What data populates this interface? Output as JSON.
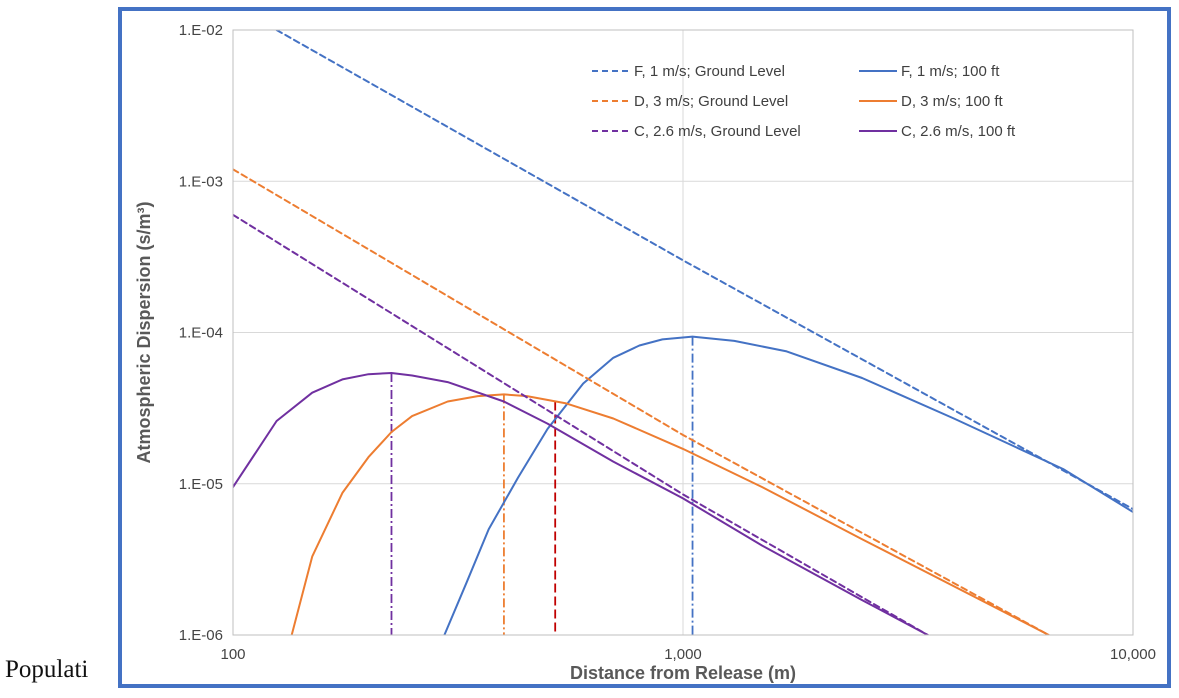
{
  "caption": "Populati",
  "chart_data": {
    "type": "line",
    "xlabel": "Distance from Release (m)",
    "ylabel": "Atmospheric Dispersion (s/m³)",
    "x_scale": "log",
    "y_scale": "log",
    "xlim": [
      100,
      10000
    ],
    "ylim": [
      1e-06,
      0.01
    ],
    "x_ticks": [
      {
        "value": 100,
        "label": "100"
      },
      {
        "value": 1000,
        "label": "1,000"
      },
      {
        "value": 10000,
        "label": "10,000"
      }
    ],
    "y_ticks": [
      {
        "value": 0.01,
        "label": "1.E-02"
      },
      {
        "value": 0.001,
        "label": "1.E-03"
      },
      {
        "value": 0.0001,
        "label": "1.E-04"
      },
      {
        "value": 1e-05,
        "label": "1.E-05"
      },
      {
        "value": 1e-06,
        "label": "1.E-06"
      }
    ],
    "grid": true,
    "legend_position": "top-right",
    "series": [
      {
        "name": "F, 1 m/s; Ground Level",
        "color": "#4472C4",
        "dash": "dashed",
        "x": [
          125,
          1000,
          10000
        ],
        "y": [
          0.01,
          0.0003,
          6.8e-06
        ]
      },
      {
        "name": "F, 1 m/s; 100 ft",
        "color": "#4472C4",
        "dash": "solid",
        "x": [
          295,
          330,
          370,
          430,
          500,
          600,
          700,
          800,
          900,
          1050,
          1300,
          1700,
          2500,
          4000,
          7000,
          10000
        ],
        "y": [
          1e-06,
          2.2e-06,
          5e-06,
          1.1e-05,
          2.3e-05,
          4.6e-05,
          6.8e-05,
          8.2e-05,
          9e-05,
          9.4e-05,
          8.8e-05,
          7.5e-05,
          5e-05,
          2.7e-05,
          1.25e-05,
          6.5e-06
        ]
      },
      {
        "name": "D, 3 m/s; Ground Level",
        "color": "#ED7D31",
        "dash": "dashed",
        "x": [
          100,
          1000,
          6500
        ],
        "y": [
          0.0012,
          2.1e-05,
          1e-06
        ]
      },
      {
        "name": "D, 3 m/s; 100 ft",
        "color": "#ED7D31",
        "dash": "solid",
        "x": [
          135,
          150,
          175,
          200,
          225,
          250,
          300,
          350,
          400,
          450,
          550,
          700,
          1000,
          1500,
          2500,
          6500
        ],
        "y": [
          1e-06,
          3.3e-06,
          8.7e-06,
          1.5e-05,
          2.2e-05,
          2.8e-05,
          3.5e-05,
          3.8e-05,
          3.9e-05,
          3.8e-05,
          3.4e-05,
          2.7e-05,
          1.7e-05,
          9.5e-06,
          4.3e-06,
          1e-06
        ]
      },
      {
        "name": "C, 2.6 m/s, Ground Level",
        "color": "#7030A0",
        "dash": "dashed",
        "x": [
          100,
          1000,
          3500
        ],
        "y": [
          0.0006,
          8.5e-06,
          1e-06
        ]
      },
      {
        "name": "C, 2.6 m/s, 100 ft",
        "color": "#7030A0",
        "dash": "solid",
        "x": [
          100,
          125,
          150,
          175,
          200,
          225,
          250,
          300,
          400,
          500,
          700,
          1000,
          1500,
          2500,
          3500
        ],
        "y": [
          9.5e-06,
          2.6e-05,
          4e-05,
          4.9e-05,
          5.3e-05,
          5.4e-05,
          5.2e-05,
          4.7e-05,
          3.5e-05,
          2.5e-05,
          1.4e-05,
          8e-06,
          3.9e-06,
          1.7e-06,
          1e-06
        ]
      }
    ],
    "reference_lines": [
      {
        "x": 225,
        "y_top": 5.4e-05,
        "color": "#7030A0",
        "style": "dashdot"
      },
      {
        "x": 400,
        "y_top": 3.9e-05,
        "color": "#ED7D31",
        "style": "dashdot"
      },
      {
        "x": 520,
        "y_top": 3.5e-05,
        "color": "#C00000",
        "style": "dashed"
      },
      {
        "x": 1050,
        "y_top": 9.4e-05,
        "color": "#4472C4",
        "style": "dashdot"
      }
    ]
  }
}
